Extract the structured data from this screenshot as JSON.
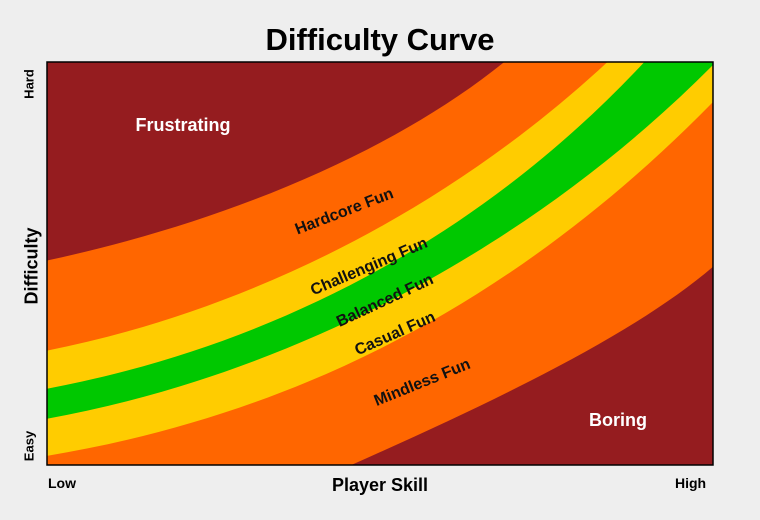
{
  "title": "Difficulty Curve",
  "y_axis": {
    "label": "Difficulty",
    "low": "Easy",
    "high": "Hard"
  },
  "x_axis": {
    "label": "Player Skill",
    "low": "Low",
    "high": "High"
  },
  "zones": [
    {
      "label": "Frustrating",
      "color": "#951c1f",
      "text_color": "#ffffff"
    },
    {
      "label": "Hardcore Fun",
      "color": "#ff6600",
      "text_color": "#111111"
    },
    {
      "label": "Challenging Fun",
      "color": "#ffcc00",
      "text_color": "#111111"
    },
    {
      "label": "Balanced Fun",
      "color": "#00c800",
      "text_color": "#111111"
    },
    {
      "label": "Casual Fun",
      "color": "#ffcc00",
      "text_color": "#111111"
    },
    {
      "label": "Mindless Fun",
      "color": "#ff6600",
      "text_color": "#111111"
    },
    {
      "label": "Boring",
      "color": "#951c1f",
      "text_color": "#ffffff"
    }
  ],
  "colors": {
    "frame": "#000000",
    "background": "#eeeeee"
  }
}
